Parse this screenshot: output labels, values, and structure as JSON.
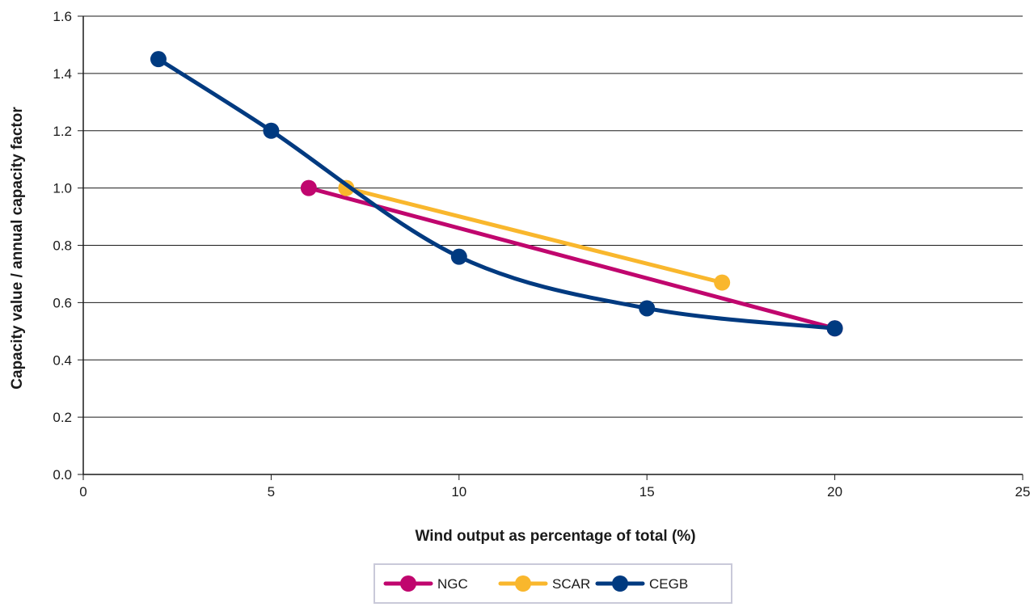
{
  "chart_data": {
    "type": "line",
    "title": "",
    "xlabel": "Wind output as percentage of total (%)",
    "ylabel": "Capacity value / annual capacity factor",
    "xlim": [
      0,
      25
    ],
    "ylim": [
      0,
      1.6
    ],
    "x_ticks": [
      0,
      5,
      10,
      15,
      20,
      25
    ],
    "y_ticks": [
      0.0,
      0.2,
      0.4,
      0.6,
      0.8,
      1.0,
      1.2,
      1.4,
      1.6
    ],
    "x_tick_labels": [
      "0",
      "5",
      "10",
      "15",
      "20",
      "25"
    ],
    "y_tick_labels": [
      "0.0",
      "0.2",
      "0.4",
      "0.6",
      "0.8",
      "1.0",
      "1.2",
      "1.4",
      "1.6"
    ],
    "grid": "horizontal",
    "legend_position": "bottom-center",
    "series": [
      {
        "name": "NGC",
        "color": "#c0066e",
        "smooth": false,
        "points": [
          [
            6,
            1.0
          ],
          [
            20,
            0.51
          ]
        ]
      },
      {
        "name": "SCAR",
        "color": "#f9b72d",
        "smooth": false,
        "points": [
          [
            7,
            1.0
          ],
          [
            17,
            0.67
          ]
        ]
      },
      {
        "name": "CEGB",
        "color": "#003a80",
        "smooth": true,
        "points": [
          [
            2,
            1.45
          ],
          [
            5,
            1.2
          ],
          [
            10,
            0.76
          ],
          [
            15,
            0.58
          ],
          [
            20,
            0.51
          ]
        ]
      }
    ]
  }
}
